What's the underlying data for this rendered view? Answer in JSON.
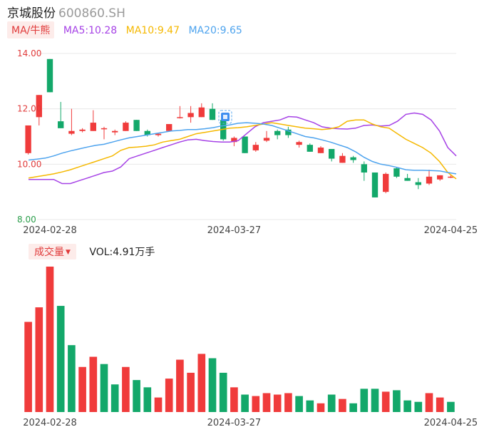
{
  "header": {
    "name": "京城股份",
    "code": "600860.SH"
  },
  "indicator": {
    "tag": "MA/牛熊",
    "ma5_label": "MA5:10.28",
    "ma5_color": "#a642e6",
    "ma10_label": "MA10:9.47",
    "ma10_color": "#f5b800",
    "ma20_label": "MA20:9.65",
    "ma20_color": "#4da3ee"
  },
  "volume_header": {
    "tag": "成交量",
    "caret": "▼",
    "value": "VOL:4.91万手"
  },
  "colors": {
    "up": "#f03b3b",
    "down": "#13a86a",
    "grid": "#e8e8e8"
  },
  "chart_data": {
    "type": "candlestick",
    "y_ticks": [
      "14.00",
      "12.00",
      "10.00",
      "8.00"
    ],
    "ylim": [
      8,
      14
    ],
    "x_ticks": [
      {
        "index": 2,
        "label": "2024-02-28"
      },
      {
        "index": 19,
        "label": "2024-03-27"
      },
      {
        "index": 39,
        "label": "2024-04-25"
      }
    ],
    "candles": [
      {
        "o": 10.4,
        "h": 11.4,
        "l": 10.35,
        "c": 11.4
      },
      {
        "o": 11.7,
        "h": 12.5,
        "l": 11.4,
        "c": 12.5
      },
      {
        "o": 13.8,
        "h": 13.8,
        "l": 12.6,
        "c": 12.6
      },
      {
        "o": 11.55,
        "h": 12.25,
        "l": 11.3,
        "c": 11.3
      },
      {
        "o": 11.1,
        "h": 12.0,
        "l": 11.05,
        "c": 11.2
      },
      {
        "o": 11.2,
        "h": 11.3,
        "l": 11.15,
        "c": 11.25
      },
      {
        "o": 11.2,
        "h": 11.95,
        "l": 11.2,
        "c": 11.5
      },
      {
        "o": 11.3,
        "h": 11.35,
        "l": 10.9,
        "c": 11.3
      },
      {
        "o": 11.15,
        "h": 11.25,
        "l": 11.05,
        "c": 11.2
      },
      {
        "o": 11.2,
        "h": 11.55,
        "l": 11.2,
        "c": 11.5
      },
      {
        "o": 11.6,
        "h": 11.6,
        "l": 11.2,
        "c": 11.2
      },
      {
        "o": 11.2,
        "h": 11.25,
        "l": 11.0,
        "c": 11.05
      },
      {
        "o": 11.05,
        "h": 11.1,
        "l": 11.0,
        "c": 11.1
      },
      {
        "o": 11.2,
        "h": 11.45,
        "l": 11.2,
        "c": 11.45
      },
      {
        "o": 11.7,
        "h": 12.1,
        "l": 11.65,
        "c": 11.7
      },
      {
        "o": 11.7,
        "h": 12.1,
        "l": 11.5,
        "c": 11.85
      },
      {
        "o": 11.7,
        "h": 12.2,
        "l": 11.7,
        "c": 12.05
      },
      {
        "o": 12.0,
        "h": 12.2,
        "l": 11.6,
        "c": 11.6
      },
      {
        "o": 11.6,
        "h": 11.6,
        "l": 10.85,
        "c": 10.9
      },
      {
        "o": 10.8,
        "h": 11.0,
        "l": 10.65,
        "c": 10.95
      },
      {
        "o": 11.0,
        "h": 11.0,
        "l": 10.4,
        "c": 10.4
      },
      {
        "o": 10.5,
        "h": 10.8,
        "l": 10.45,
        "c": 10.7
      },
      {
        "o": 10.85,
        "h": 11.2,
        "l": 10.8,
        "c": 10.95
      },
      {
        "o": 11.2,
        "h": 11.25,
        "l": 10.9,
        "c": 11.05
      },
      {
        "o": 11.25,
        "h": 11.35,
        "l": 10.95,
        "c": 11.05
      },
      {
        "o": 10.7,
        "h": 10.85,
        "l": 10.6,
        "c": 10.8
      },
      {
        "o": 10.7,
        "h": 10.75,
        "l": 10.45,
        "c": 10.45
      },
      {
        "o": 10.4,
        "h": 10.65,
        "l": 10.4,
        "c": 10.6
      },
      {
        "o": 10.55,
        "h": 10.55,
        "l": 10.1,
        "c": 10.2
      },
      {
        "o": 10.05,
        "h": 10.4,
        "l": 10.05,
        "c": 10.3
      },
      {
        "o": 10.25,
        "h": 10.3,
        "l": 10.05,
        "c": 10.15
      },
      {
        "o": 10.0,
        "h": 10.1,
        "l": 9.4,
        "c": 9.7
      },
      {
        "o": 9.7,
        "h": 9.7,
        "l": 8.8,
        "c": 8.8
      },
      {
        "o": 9.0,
        "h": 9.7,
        "l": 8.95,
        "c": 9.65
      },
      {
        "o": 9.85,
        "h": 9.9,
        "l": 9.5,
        "c": 9.55
      },
      {
        "o": 9.5,
        "h": 9.65,
        "l": 9.4,
        "c": 9.4
      },
      {
        "o": 9.35,
        "h": 9.5,
        "l": 9.1,
        "c": 9.25
      },
      {
        "o": 9.3,
        "h": 9.8,
        "l": 9.25,
        "c": 9.55
      },
      {
        "o": 9.45,
        "h": 9.6,
        "l": 9.4,
        "c": 9.6
      },
      {
        "o": 9.55,
        "h": 9.6,
        "l": 9.5,
        "c": 9.55
      }
    ],
    "volume": [
      {
        "v": 62,
        "up": true
      },
      {
        "v": 72,
        "up": true
      },
      {
        "v": 100,
        "up": true
      },
      {
        "v": 73,
        "up": false
      },
      {
        "v": 46,
        "up": false
      },
      {
        "v": 31,
        "up": true
      },
      {
        "v": 38,
        "up": true
      },
      {
        "v": 33,
        "up": false
      },
      {
        "v": 19,
        "up": false
      },
      {
        "v": 31,
        "up": true
      },
      {
        "v": 22,
        "up": false
      },
      {
        "v": 17,
        "up": false
      },
      {
        "v": 10,
        "up": true
      },
      {
        "v": 23,
        "up": true
      },
      {
        "v": 36,
        "up": true
      },
      {
        "v": 27,
        "up": true
      },
      {
        "v": 40,
        "up": true
      },
      {
        "v": 37,
        "up": false
      },
      {
        "v": 27,
        "up": false
      },
      {
        "v": 17,
        "up": true
      },
      {
        "v": 12,
        "up": false
      },
      {
        "v": 11,
        "up": true
      },
      {
        "v": 13,
        "up": true
      },
      {
        "v": 12,
        "up": true
      },
      {
        "v": 13,
        "up": true
      },
      {
        "v": 11,
        "up": false
      },
      {
        "v": 8,
        "up": false
      },
      {
        "v": 6,
        "up": true
      },
      {
        "v": 12,
        "up": false
      },
      {
        "v": 9,
        "up": true
      },
      {
        "v": 6,
        "up": false
      },
      {
        "v": 16,
        "up": false
      },
      {
        "v": 16,
        "up": false
      },
      {
        "v": 14,
        "up": true
      },
      {
        "v": 15,
        "up": false
      },
      {
        "v": 8,
        "up": false
      },
      {
        "v": 7,
        "up": false
      },
      {
        "v": 13,
        "up": true
      },
      {
        "v": 10,
        "up": true
      },
      {
        "v": 7,
        "up": false
      }
    ],
    "series": [
      {
        "name": "MA5",
        "values": [
          9.45,
          9.45,
          9.45,
          9.45,
          9.3,
          9.3,
          9.4,
          9.5,
          9.6,
          9.7,
          9.75,
          9.9,
          10.2,
          10.3,
          10.4,
          10.5,
          10.6,
          10.7,
          10.8,
          10.88,
          10.9,
          10.85,
          10.82,
          10.8,
          10.8,
          10.85,
          11.1,
          11.35,
          11.5,
          11.55,
          11.6,
          11.72,
          11.7,
          11.6,
          11.5,
          11.35,
          11.3,
          11.28,
          11.27,
          11.3,
          11.4,
          11.42,
          11.38,
          11.4,
          11.55,
          11.8,
          11.85,
          11.8,
          11.6,
          11.2,
          10.6,
          10.3
        ]
      },
      {
        "name": "MA10",
        "values": [
          9.5,
          9.55,
          9.6,
          9.65,
          9.72,
          9.8,
          9.9,
          10.0,
          10.1,
          10.2,
          10.3,
          10.5,
          10.6,
          10.62,
          10.65,
          10.7,
          10.8,
          10.85,
          10.9,
          11.0,
          11.1,
          11.15,
          11.2,
          11.25,
          11.3,
          11.32,
          11.35,
          11.4,
          11.45,
          11.5,
          11.45,
          11.4,
          11.35,
          11.3,
          11.28,
          11.25,
          11.28,
          11.35,
          11.55,
          11.6,
          11.6,
          11.45,
          11.35,
          11.3,
          11.1,
          10.9,
          10.75,
          10.6,
          10.4,
          10.1,
          9.7,
          9.47
        ]
      },
      {
        "name": "MA20",
        "values": [
          10.15,
          10.18,
          10.22,
          10.3,
          10.4,
          10.48,
          10.55,
          10.62,
          10.68,
          10.72,
          10.8,
          10.88,
          10.95,
          11.0,
          11.05,
          11.1,
          11.15,
          11.2,
          11.22,
          11.25,
          11.25,
          11.28,
          11.32,
          11.38,
          11.42,
          11.48,
          11.5,
          11.48,
          11.45,
          11.4,
          11.3,
          11.2,
          11.1,
          11.0,
          10.95,
          10.88,
          10.8,
          10.7,
          10.6,
          10.45,
          10.25,
          10.1,
          10.0,
          9.95,
          9.88,
          9.8,
          9.78,
          9.78,
          9.77,
          9.76,
          9.7,
          9.65
        ]
      }
    ]
  }
}
